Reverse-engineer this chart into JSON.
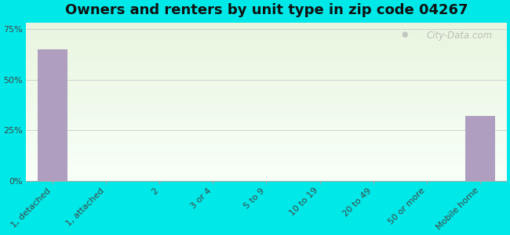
{
  "title": "Owners and renters by unit type in zip code 04267",
  "categories": [
    "1, detached",
    "1, attached",
    "2",
    "3 or 4",
    "5 to 9",
    "10 to 19",
    "20 to 49",
    "50 or more",
    "Mobile home"
  ],
  "values": [
    65.0,
    0.0,
    0.0,
    0.0,
    0.0,
    0.0,
    0.0,
    0.0,
    32.0
  ],
  "bar_color": "#b09ec0",
  "background_color": "#00e8e8",
  "plot_bg_top": "#e8f5e0",
  "plot_bg_bottom": "#f8fff8",
  "yticks": [
    0,
    25,
    50,
    75
  ],
  "ytick_labels": [
    "0%",
    "25%",
    "50%",
    "75%"
  ],
  "ylim": [
    0,
    78
  ],
  "watermark": "City-Data.com",
  "title_fontsize": 13,
  "tick_fontsize": 8
}
